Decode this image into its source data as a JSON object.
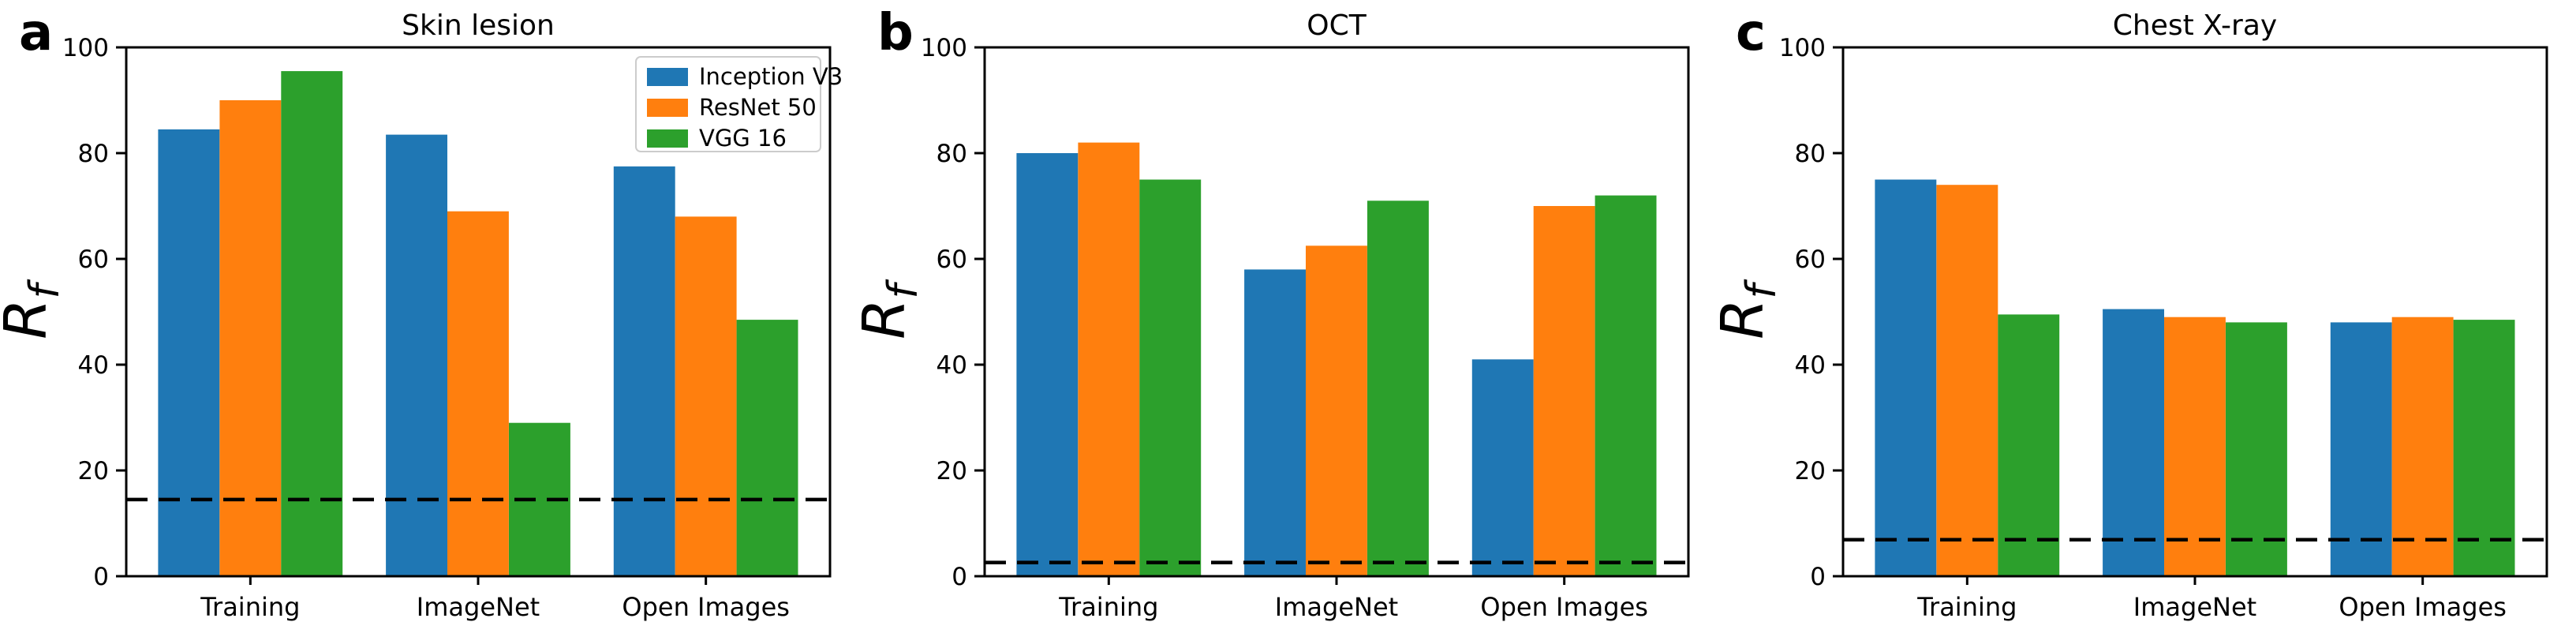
{
  "figure": {
    "description": "Three-panel grouped bar chart figure comparing R_f across datasets and architectures",
    "panel_letters": [
      "a",
      "b",
      "c"
    ]
  },
  "chart_data": [
    {
      "type": "bar",
      "panel_letter": "a",
      "title": "Skin lesion",
      "ylabel_base": "R",
      "ylabel_sub": "f",
      "xlabel": "",
      "categories": [
        "Training",
        "ImageNet",
        "Open Images"
      ],
      "series": [
        {
          "name": "Inception V3",
          "color": "#1f77b4",
          "values": [
            84.5,
            83.5,
            77.5
          ]
        },
        {
          "name": "ResNet 50",
          "color": "#ff7f0e",
          "values": [
            90.0,
            69.0,
            68.0
          ]
        },
        {
          "name": "VGG 16",
          "color": "#2ca02c",
          "values": [
            95.5,
            29.0,
            48.5
          ]
        }
      ],
      "baseline_dashed_y": 14.5,
      "ylim": [
        0,
        100
      ],
      "yticks": [
        0,
        20,
        40,
        60,
        80,
        100
      ],
      "grid": false,
      "legend": {
        "show": true,
        "position": "upper-right",
        "entries": [
          "Inception V3",
          "ResNet 50",
          "VGG 16"
        ]
      }
    },
    {
      "type": "bar",
      "panel_letter": "b",
      "title": "OCT",
      "ylabel_base": "R",
      "ylabel_sub": "f",
      "xlabel": "",
      "categories": [
        "Training",
        "ImageNet",
        "Open Images"
      ],
      "series": [
        {
          "name": "Inception V3",
          "color": "#1f77b4",
          "values": [
            80.0,
            58.0,
            41.0
          ]
        },
        {
          "name": "ResNet 50",
          "color": "#ff7f0e",
          "values": [
            82.0,
            62.5,
            70.0
          ]
        },
        {
          "name": "VGG 16",
          "color": "#2ca02c",
          "values": [
            75.0,
            71.0,
            72.0
          ]
        }
      ],
      "baseline_dashed_y": 2.6,
      "ylim": [
        0,
        100
      ],
      "yticks": [
        0,
        20,
        40,
        60,
        80,
        100
      ],
      "grid": false,
      "legend": {
        "show": false,
        "position": null,
        "entries": []
      }
    },
    {
      "type": "bar",
      "panel_letter": "c",
      "title": "Chest X-ray",
      "ylabel_base": "R",
      "ylabel_sub": "f",
      "xlabel": "",
      "categories": [
        "Training",
        "ImageNet",
        "Open Images"
      ],
      "series": [
        {
          "name": "Inception V3",
          "color": "#1f77b4",
          "values": [
            75.0,
            50.5,
            48.0
          ]
        },
        {
          "name": "ResNet 50",
          "color": "#ff7f0e",
          "values": [
            74.0,
            49.0,
            49.0
          ]
        },
        {
          "name": "VGG 16",
          "color": "#2ca02c",
          "values": [
            49.5,
            48.0,
            48.5
          ]
        }
      ],
      "baseline_dashed_y": 6.9,
      "ylim": [
        0,
        100
      ],
      "yticks": [
        0,
        20,
        40,
        60,
        80,
        100
      ],
      "grid": false,
      "legend": {
        "show": false,
        "position": null,
        "entries": []
      }
    }
  ]
}
